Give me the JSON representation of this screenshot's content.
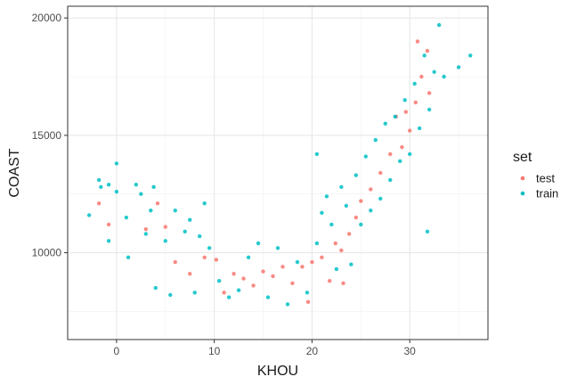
{
  "chart_data": {
    "type": "scatter",
    "xlabel": "KHOU",
    "ylabel": "COAST",
    "xlim": [
      -5,
      38
    ],
    "ylim": [
      6300,
      20500
    ],
    "xticks": [
      0,
      10,
      20,
      30
    ],
    "xtick_labels": [
      "0",
      "10",
      "20",
      "30"
    ],
    "yticks": [
      10000,
      15000,
      20000
    ],
    "ytick_labels": [
      "10000",
      "15000",
      "20000"
    ],
    "grid": true,
    "legend": {
      "title": "set",
      "position": "right"
    },
    "series": [
      {
        "name": "test",
        "color": "#F8766D",
        "points": [
          [
            -1.8,
            12100
          ],
          [
            -0.8,
            11200
          ],
          [
            3.0,
            11000
          ],
          [
            4.2,
            12100
          ],
          [
            5.0,
            11100
          ],
          [
            6.0,
            9600
          ],
          [
            7.5,
            9100
          ],
          [
            9.0,
            9800
          ],
          [
            10.2,
            9700
          ],
          [
            11.0,
            8300
          ],
          [
            12.0,
            9100
          ],
          [
            13.0,
            8900
          ],
          [
            14.0,
            8600
          ],
          [
            15.0,
            9200
          ],
          [
            16.0,
            9000
          ],
          [
            17.0,
            9400
          ],
          [
            18.0,
            8700
          ],
          [
            19.0,
            9400
          ],
          [
            20.0,
            9600
          ],
          [
            21.0,
            9800
          ],
          [
            21.8,
            8800
          ],
          [
            22.4,
            10400
          ],
          [
            23.0,
            10100
          ],
          [
            23.8,
            10800
          ],
          [
            24.5,
            11500
          ],
          [
            25.0,
            12200
          ],
          [
            26.0,
            12700
          ],
          [
            27.0,
            13400
          ],
          [
            28.0,
            14200
          ],
          [
            28.6,
            15800
          ],
          [
            29.2,
            14500
          ],
          [
            30.0,
            15200
          ],
          [
            30.6,
            16400
          ],
          [
            31.2,
            17500
          ],
          [
            31.8,
            18600
          ],
          [
            32.0,
            16800
          ],
          [
            30.8,
            19000
          ],
          [
            29.6,
            16000
          ],
          [
            19.6,
            7900
          ],
          [
            23.2,
            8700
          ]
        ]
      },
      {
        "name": "train",
        "color": "#00BFC4",
        "points": [
          [
            -2.8,
            11600
          ],
          [
            -1.8,
            13100
          ],
          [
            -1.6,
            12800
          ],
          [
            -0.8,
            12900
          ],
          [
            -0.8,
            10500
          ],
          [
            0.0,
            13800
          ],
          [
            0.0,
            12600
          ],
          [
            1.0,
            11500
          ],
          [
            1.2,
            9800
          ],
          [
            2.0,
            12900
          ],
          [
            2.5,
            12500
          ],
          [
            3.0,
            10800
          ],
          [
            3.5,
            11800
          ],
          [
            3.8,
            12800
          ],
          [
            4.0,
            8500
          ],
          [
            5.0,
            10500
          ],
          [
            5.5,
            8200
          ],
          [
            6.0,
            11800
          ],
          [
            7.0,
            10900
          ],
          [
            7.5,
            11400
          ],
          [
            8.0,
            8300
          ],
          [
            8.5,
            10700
          ],
          [
            9.0,
            12100
          ],
          [
            9.5,
            10200
          ],
          [
            10.5,
            8800
          ],
          [
            11.5,
            8100
          ],
          [
            12.5,
            8400
          ],
          [
            13.5,
            9800
          ],
          [
            14.5,
            10400
          ],
          [
            15.5,
            8100
          ],
          [
            16.5,
            10200
          ],
          [
            17.5,
            7800
          ],
          [
            18.5,
            9600
          ],
          [
            19.5,
            8300
          ],
          [
            20.5,
            10400
          ],
          [
            21.0,
            11700
          ],
          [
            21.5,
            12400
          ],
          [
            22.0,
            11200
          ],
          [
            22.5,
            9300
          ],
          [
            23.0,
            12800
          ],
          [
            23.5,
            12000
          ],
          [
            24.0,
            9500
          ],
          [
            24.5,
            13300
          ],
          [
            25.0,
            11200
          ],
          [
            25.5,
            14100
          ],
          [
            26.0,
            11800
          ],
          [
            26.5,
            14800
          ],
          [
            27.0,
            12300
          ],
          [
            27.5,
            15500
          ],
          [
            28.0,
            13100
          ],
          [
            28.5,
            15800
          ],
          [
            29.0,
            13900
          ],
          [
            29.5,
            16500
          ],
          [
            30.0,
            14200
          ],
          [
            30.5,
            17200
          ],
          [
            31.0,
            15300
          ],
          [
            31.5,
            18400
          ],
          [
            32.0,
            16100
          ],
          [
            32.5,
            17700
          ],
          [
            33.0,
            19700
          ],
          [
            33.5,
            17500
          ],
          [
            35.0,
            17900
          ],
          [
            36.2,
            18400
          ],
          [
            31.8,
            10900
          ],
          [
            20.5,
            14200
          ]
        ]
      }
    ]
  }
}
